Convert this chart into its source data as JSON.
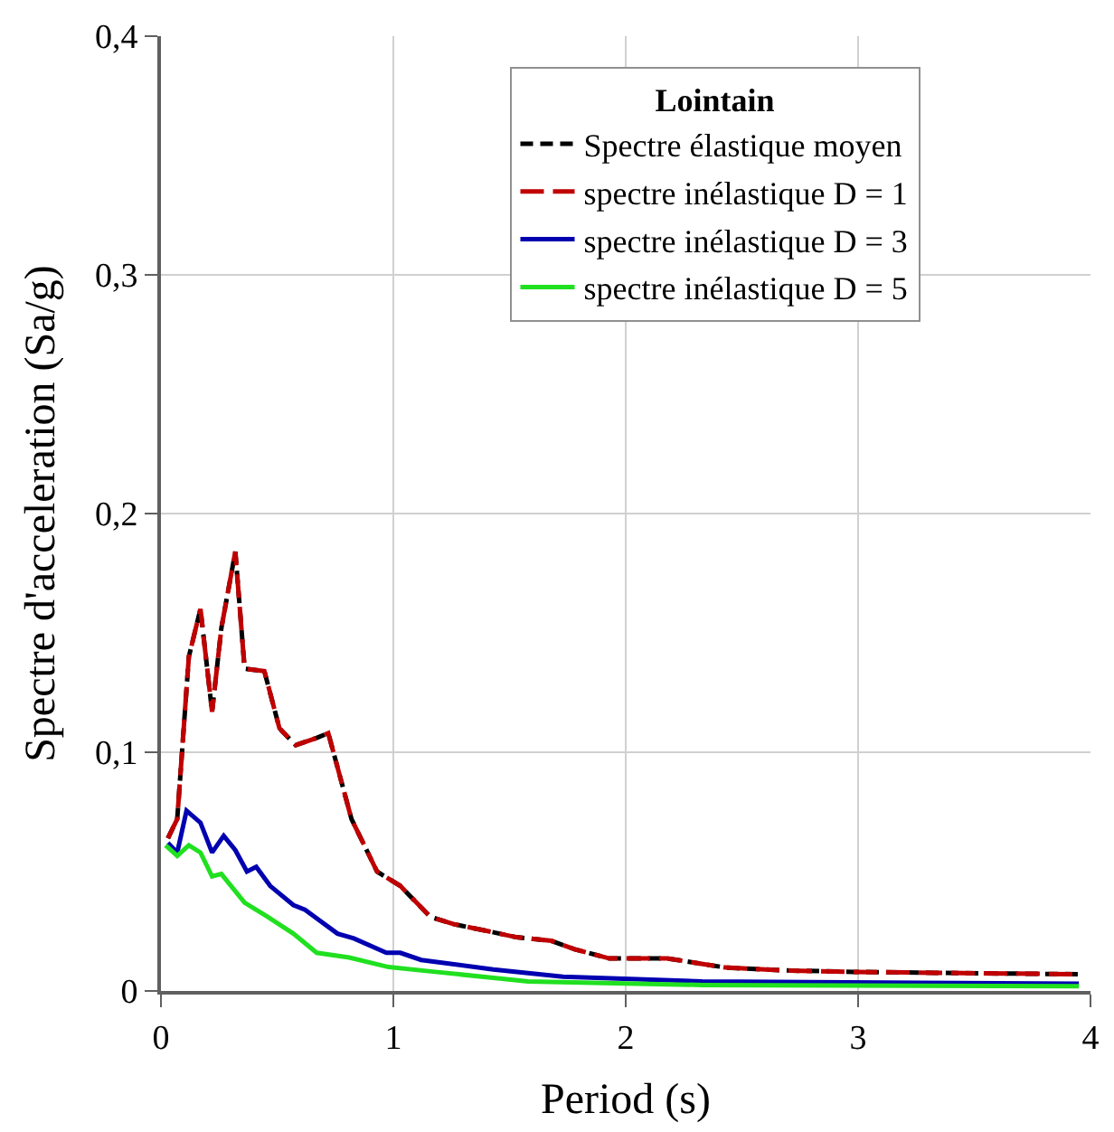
{
  "chart_data": {
    "type": "line",
    "xlabel": "Period (s)",
    "ylabel": "Spectre d'acceleration (Sa/g)",
    "legend_title": "Lointain",
    "xlim": [
      0,
      4
    ],
    "xticks": [
      0,
      1,
      2,
      3,
      4
    ],
    "ylim": [
      0,
      0.4
    ],
    "yticks": [
      0,
      {
        "value": 0.1,
        "label": "0,1"
      },
      {
        "value": 0.2,
        "label": "0,2"
      },
      {
        "value": 0.3,
        "label": "0,3"
      },
      {
        "value": 0.4,
        "label": "0,4"
      }
    ],
    "grid": true,
    "legend": "top right",
    "marker": "none",
    "series": [
      {
        "name": "Spectre élastique moyen",
        "color": "#000000",
        "line_style": "dashed",
        "x": [
          0.03,
          0.07,
          0.12,
          0.17,
          0.22,
          0.26,
          0.32,
          0.36,
          0.445,
          0.51,
          0.58,
          0.67,
          0.72,
          0.82,
          0.93,
          1.03,
          1.16,
          1.26,
          1.41,
          1.53,
          1.68,
          1.78,
          1.93,
          2.18,
          2.43,
          2.68,
          2.98,
          3.33,
          3.95
        ],
        "values": [
          0.064,
          0.072,
          0.14,
          0.16,
          0.117,
          0.152,
          0.184,
          0.135,
          0.134,
          0.11,
          0.103,
          0.106,
          0.108,
          0.072,
          0.05,
          0.044,
          0.031,
          0.028,
          0.025,
          0.0225,
          0.021,
          0.0175,
          0.0136,
          0.0136,
          0.0098,
          0.0086,
          0.008,
          0.0076,
          0.007
        ]
      },
      {
        "name": "spectre inélastique D = 1",
        "color": "#c00000",
        "line_style": "longdash",
        "x": [
          0.03,
          0.07,
          0.12,
          0.17,
          0.22,
          0.26,
          0.32,
          0.36,
          0.445,
          0.51,
          0.58,
          0.67,
          0.72,
          0.82,
          0.93,
          1.03,
          1.16,
          1.26,
          1.41,
          1.53,
          1.68,
          1.78,
          1.93,
          2.18,
          2.43,
          2.68,
          2.98,
          3.33,
          3.95
        ],
        "values": [
          0.064,
          0.072,
          0.14,
          0.16,
          0.117,
          0.152,
          0.184,
          0.135,
          0.134,
          0.11,
          0.103,
          0.106,
          0.108,
          0.072,
          0.05,
          0.044,
          0.031,
          0.028,
          0.025,
          0.0225,
          0.021,
          0.0175,
          0.0136,
          0.0136,
          0.0098,
          0.0086,
          0.008,
          0.0076,
          0.007
        ]
      },
      {
        "name": "spectre inélastique D = 3",
        "color": "#0000b0",
        "line_style": "solid",
        "x": [
          0.03,
          0.07,
          0.11,
          0.17,
          0.22,
          0.27,
          0.32,
          0.37,
          0.41,
          0.47,
          0.57,
          0.62,
          0.76,
          0.83,
          0.97,
          1.03,
          1.12,
          1.43,
          1.73,
          2.33,
          3.95
        ],
        "values": [
          0.062,
          0.058,
          0.0755,
          0.0705,
          0.058,
          0.065,
          0.059,
          0.05,
          0.052,
          0.044,
          0.036,
          0.034,
          0.024,
          0.022,
          0.016,
          0.016,
          0.013,
          0.009,
          0.006,
          0.004,
          0.003
        ]
      },
      {
        "name": "spectre inélastique D = 5",
        "color": "#20e020",
        "line_style": "solid",
        "x": [
          0.02,
          0.07,
          0.12,
          0.17,
          0.22,
          0.26,
          0.36,
          0.46,
          0.57,
          0.67,
          0.81,
          0.98,
          1.18,
          1.43,
          1.58,
          2.33,
          3.95
        ],
        "values": [
          0.061,
          0.0566,
          0.061,
          0.058,
          0.048,
          0.049,
          0.037,
          0.031,
          0.024,
          0.016,
          0.014,
          0.01,
          0.008,
          0.0055,
          0.004,
          0.0025,
          0.002
        ]
      }
    ]
  }
}
